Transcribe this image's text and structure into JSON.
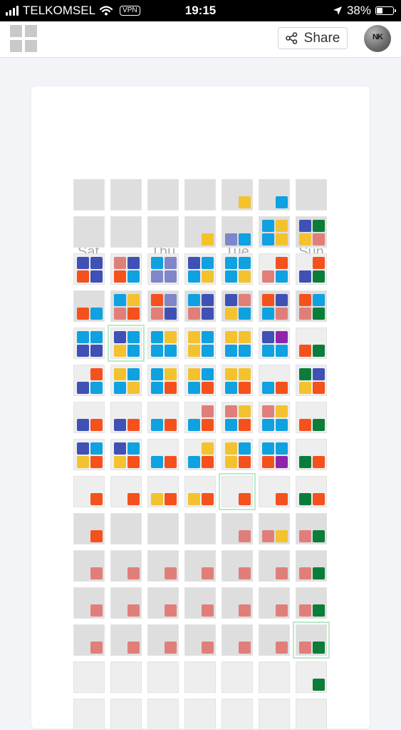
{
  "status_bar": {
    "carrier": "TELKOMSEL",
    "vpn": "VPN",
    "time": "19:15",
    "battery": "38%",
    "battery_level": 0.38
  },
  "header": {
    "menu_icon": "grid-icon",
    "share_icon": "share-icon",
    "share_label": "Share",
    "avatar_initials": "NK"
  },
  "day_labels": [
    "Sat",
    "Thu",
    "Tue",
    "Sun"
  ],
  "colors": {
    "P": "#e07f7a",
    "Y": "#f4c22e",
    "B": "#0fa1e0",
    "N": "#3f51b5",
    "L": "#7f86c9",
    "O": "#f5511d",
    "G": "#0b7d3b",
    "V": "#8f24aa"
  },
  "calendar": {
    "columns": 7,
    "legend": "Each cell lists colored tags in slots top-left, top-right, bottom-left, bottom-right; '.' means empty.",
    "rows": [
      [
        "....",
        "....",
        "....",
        "....",
        "...Y",
        "...B",
        "...."
      ],
      [
        "....",
        "....",
        "....",
        "...Y",
        "..LB",
        "BYBY",
        "NGYP"
      ],
      [
        "NNON",
        "PNOB",
        "BLLL",
        "NBBY",
        "BBBY",
        ".OPB",
        ".ONG"
      ],
      [
        "..OB",
        "BYPO",
        "OLPN",
        "BNPN",
        "NPYB",
        "ONBP",
        "OBPG"
      ],
      [
        "BBNN",
        "NBYB",
        "BYBB",
        "YBYB",
        "YYBB",
        "NVBB",
        "..OG"
      ],
      [
        ".ONB",
        "YBBY",
        "BYBO",
        "YBBO",
        "YYBO",
        "..BO",
        "GNYO"
      ],
      [
        "..NO",
        "..NO",
        "..BO",
        ".PBO",
        "PYBO",
        "PYBB",
        "..OG"
      ],
      [
        "NBYO",
        "NBYO",
        "..BO",
        ".YBO",
        "YBYO",
        "BBOV",
        "..GO"
      ],
      [
        "...O",
        "...O",
        "..YO",
        "..YO",
        "...O",
        "...O",
        "..GO"
      ],
      [
        "...O",
        "....",
        "....",
        "....",
        "...P",
        "..PY",
        "..PG"
      ],
      [
        "...P",
        "...P",
        "...P",
        "...P",
        "...P",
        "...P",
        "..PG"
      ],
      [
        "...P",
        "...P",
        "...P",
        "...P",
        "...P",
        "...P",
        "..PG"
      ],
      [
        "...P",
        "...P",
        "...P",
        "...P",
        "...P",
        "...P",
        "..PG"
      ],
      [
        "....",
        "....",
        "....",
        "....",
        "....",
        "....",
        "...G"
      ],
      [
        "....",
        "....",
        "....",
        "....",
        "....",
        "....",
        "...."
      ]
    ],
    "row_shades": [
      "d",
      "d",
      "w",
      "d",
      "w",
      "w",
      "w",
      "w",
      "w",
      "d",
      "d",
      "d",
      "d",
      "w",
      "w"
    ],
    "highlighted": [
      [
        4,
        1
      ],
      [
        8,
        4
      ],
      [
        12,
        6
      ]
    ]
  }
}
